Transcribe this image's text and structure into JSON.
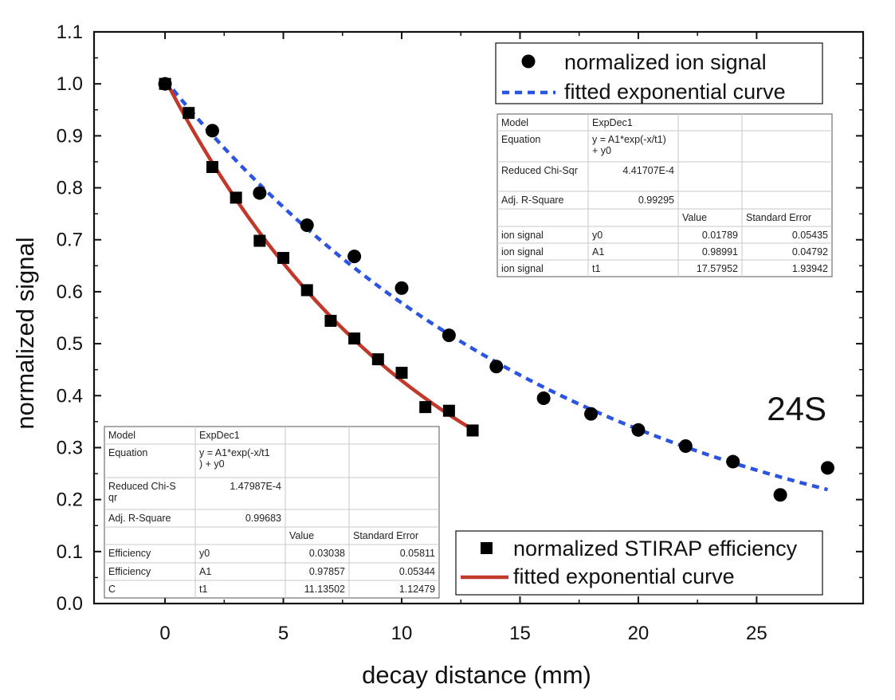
{
  "chart_data": {
    "type": "scatter",
    "xlabel": "decay distance (mm)",
    "ylabel": "normalized signal",
    "xlim": [
      -3,
      29.5
    ],
    "ylim": [
      0.0,
      1.1
    ],
    "x_ticks": [
      0,
      5,
      10,
      15,
      20,
      25
    ],
    "y_ticks": [
      0.0,
      0.1,
      0.2,
      0.3,
      0.4,
      0.5,
      0.6,
      0.7,
      0.8,
      0.9,
      1.0,
      1.1
    ],
    "grid": false,
    "annotation": "24S",
    "series": [
      {
        "name": "normalized ion signal",
        "marker": "circle",
        "color": "#000000",
        "x": [
          0,
          2,
          4,
          6,
          8,
          10,
          12,
          14,
          16,
          18,
          20,
          22,
          24,
          26,
          28
        ],
        "y": [
          1.0,
          0.91,
          0.79,
          0.728,
          0.668,
          0.607,
          0.516,
          0.456,
          0.395,
          0.365,
          0.334,
          0.303,
          0.273,
          0.209,
          0.261
        ]
      },
      {
        "name": "fitted exponential curve",
        "style": "dotted-line",
        "color": "#2b55e0",
        "fit": {
          "y0": 0.01789,
          "A1": 0.98991,
          "t1": 17.57952
        },
        "x_range": [
          0,
          28
        ]
      },
      {
        "name": "normalized STIRAP efficiency",
        "marker": "square",
        "color": "#000000",
        "x": [
          0,
          1,
          2,
          3,
          4,
          5,
          6,
          7,
          8,
          9,
          10,
          11,
          12,
          13
        ],
        "y": [
          1.0,
          0.944,
          0.84,
          0.781,
          0.698,
          0.665,
          0.603,
          0.544,
          0.51,
          0.47,
          0.444,
          0.378,
          0.371,
          0.333
        ]
      },
      {
        "name": "fitted exponential curve",
        "style": "solid-line",
        "color": "#c0392b",
        "fit": {
          "y0": 0.03038,
          "A1": 0.97857,
          "t1": 11.13502
        },
        "x_range": [
          0,
          13
        ]
      }
    ],
    "legends": [
      {
        "placement": "top-right",
        "entries": [
          "normalized ion signal",
          "fitted exponential curve"
        ]
      },
      {
        "placement": "bottom-right",
        "entries": [
          "normalized STIRAP efficiency",
          "fitted exponential curve"
        ]
      }
    ],
    "fit_tables": [
      {
        "placement": "upper-right",
        "model_label": "Model",
        "model": "ExpDec1",
        "equation_label": "Equation",
        "equation_lines": [
          "y = A1*exp(-x/t1)",
          "+ y0"
        ],
        "chisq_label_lines": [
          "Reduced Chi-Sqr"
        ],
        "chisq": "4.41707E-4",
        "r2_label": "Adj. R-Square",
        "r2": "0.99295",
        "value_header": "Value",
        "error_header": "Standard Error",
        "rows": [
          {
            "name": "ion signal",
            "param": "y0",
            "value": "0.01789",
            "error": "0.05435"
          },
          {
            "name": "ion signal",
            "param": "A1",
            "value": "0.98991",
            "error": "0.04792"
          },
          {
            "name": "ion signal",
            "param": "t1",
            "value": "17.57952",
            "error": "1.93942"
          }
        ]
      },
      {
        "placement": "lower-left",
        "model_label": "Model",
        "model": "ExpDec1",
        "equation_label": "Equation",
        "equation_lines": [
          "y = A1*exp(-x/t1",
          ") + y0"
        ],
        "chisq_label_lines": [
          "Reduced Chi-S",
          "qr"
        ],
        "chisq": "1.47987E-4",
        "r2_label": "Adj. R-Square",
        "r2": "0.99683",
        "value_header": "Value",
        "error_header": "Standard Error",
        "rows": [
          {
            "name": "Efficiency",
            "param": "y0",
            "value": "0.03038",
            "error": "0.05811"
          },
          {
            "name": "Efficiency",
            "param": "A1",
            "value": "0.97857",
            "error": "0.05344"
          },
          {
            "name": "C",
            "param": "t1",
            "value": "11.13502",
            "error": "1.12479"
          }
        ]
      }
    ]
  }
}
